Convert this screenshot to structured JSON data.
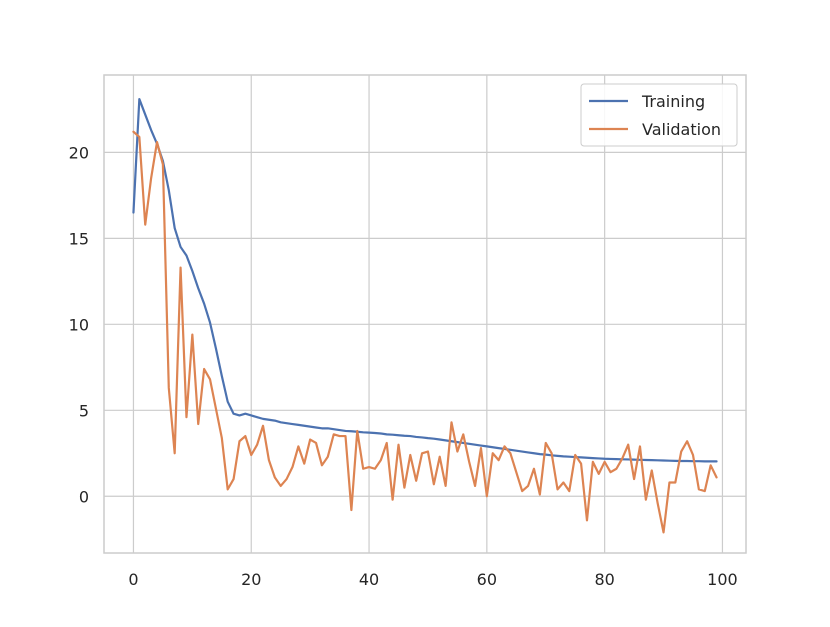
{
  "chart_data": {
    "type": "line",
    "title": "",
    "xlabel": "",
    "ylabel": "",
    "xlim": [
      -5,
      104
    ],
    "ylim": [
      -3.3,
      24.5
    ],
    "xticks": [
      0,
      20,
      40,
      60,
      80,
      100
    ],
    "yticks": [
      0,
      5,
      10,
      15,
      20
    ],
    "grid": true,
    "legend_position": "top-right",
    "series": [
      {
        "name": "Training",
        "color": "#4c72b0",
        "x": [
          0,
          1,
          2,
          3,
          4,
          5,
          6,
          7,
          8,
          9,
          10,
          11,
          12,
          13,
          14,
          15,
          16,
          17,
          18,
          19,
          20,
          21,
          22,
          23,
          24,
          25,
          26,
          27,
          28,
          29,
          30,
          31,
          32,
          33,
          34,
          35,
          36,
          37,
          38,
          39,
          40,
          41,
          42,
          43,
          44,
          45,
          46,
          47,
          48,
          49,
          50,
          51,
          52,
          53,
          54,
          55,
          56,
          57,
          58,
          59,
          60,
          61,
          62,
          63,
          64,
          65,
          66,
          67,
          68,
          69,
          70,
          71,
          72,
          73,
          74,
          75,
          76,
          77,
          78,
          79,
          80,
          81,
          82,
          83,
          84,
          85,
          86,
          87,
          88,
          89,
          90,
          91,
          92,
          93,
          94,
          95,
          96,
          97,
          98,
          99
        ],
        "values": [
          16.5,
          23.1,
          22.2,
          21.3,
          20.5,
          19.5,
          17.8,
          15.6,
          14.5,
          14.0,
          13.1,
          12.1,
          11.2,
          10.1,
          8.6,
          7.0,
          5.5,
          4.8,
          4.7,
          4.8,
          4.7,
          4.6,
          4.5,
          4.45,
          4.4,
          4.3,
          4.25,
          4.2,
          4.15,
          4.1,
          4.05,
          4.0,
          3.95,
          3.95,
          3.9,
          3.85,
          3.8,
          3.78,
          3.75,
          3.72,
          3.7,
          3.68,
          3.65,
          3.6,
          3.58,
          3.55,
          3.52,
          3.5,
          3.45,
          3.42,
          3.38,
          3.35,
          3.3,
          3.25,
          3.2,
          3.15,
          3.1,
          3.05,
          3.0,
          2.95,
          2.9,
          2.85,
          2.8,
          2.75,
          2.7,
          2.65,
          2.6,
          2.55,
          2.5,
          2.45,
          2.42,
          2.38,
          2.35,
          2.32,
          2.3,
          2.28,
          2.26,
          2.24,
          2.22,
          2.2,
          2.18,
          2.17,
          2.16,
          2.15,
          2.14,
          2.13,
          2.12,
          2.11,
          2.1,
          2.09,
          2.08,
          2.07,
          2.06,
          2.05,
          2.05,
          2.04,
          2.04,
          2.03,
          2.03,
          2.03
        ]
      },
      {
        "name": "Validation",
        "color": "#dd8452",
        "x": [
          0,
          1,
          2,
          3,
          4,
          5,
          6,
          7,
          8,
          9,
          10,
          11,
          12,
          13,
          14,
          15,
          16,
          17,
          18,
          19,
          20,
          21,
          22,
          23,
          24,
          25,
          26,
          27,
          28,
          29,
          30,
          31,
          32,
          33,
          34,
          35,
          36,
          37,
          38,
          39,
          40,
          41,
          42,
          43,
          44,
          45,
          46,
          47,
          48,
          49,
          50,
          51,
          52,
          53,
          54,
          55,
          56,
          57,
          58,
          59,
          60,
          61,
          62,
          63,
          64,
          65,
          66,
          67,
          68,
          69,
          70,
          71,
          72,
          73,
          74,
          75,
          76,
          77,
          78,
          79,
          80,
          81,
          82,
          83,
          84,
          85,
          86,
          87,
          88,
          89,
          90,
          91,
          92,
          93,
          94,
          95,
          96,
          97,
          98,
          99
        ],
        "values": [
          21.2,
          20.9,
          15.8,
          18.5,
          20.6,
          19.3,
          6.3,
          2.5,
          13.3,
          4.6,
          9.4,
          4.2,
          7.4,
          6.8,
          5.1,
          3.4,
          0.4,
          1.0,
          3.2,
          3.5,
          2.4,
          3.0,
          4.1,
          2.1,
          1.1,
          0.6,
          1.0,
          1.7,
          2.9,
          1.9,
          3.3,
          3.1,
          1.8,
          2.3,
          3.6,
          3.5,
          3.5,
          -0.8,
          3.8,
          1.6,
          1.7,
          1.6,
          2.1,
          3.1,
          -0.2,
          3.0,
          0.5,
          2.4,
          0.9,
          2.5,
          2.6,
          0.7,
          2.3,
          0.6,
          4.3,
          2.6,
          3.6,
          2.0,
          0.6,
          2.8,
          0.0,
          2.5,
          2.1,
          2.9,
          2.5,
          1.4,
          0.3,
          0.6,
          1.6,
          0.1,
          3.1,
          2.5,
          0.4,
          0.8,
          0.3,
          2.4,
          1.9,
          -1.4,
          2.0,
          1.3,
          2.0,
          1.4,
          1.6,
          2.2,
          3.0,
          1.0,
          2.9,
          -0.2,
          1.5,
          -0.4,
          -2.1,
          0.8,
          0.8,
          2.6,
          3.2,
          2.4,
          0.4,
          0.3,
          1.8,
          1.1
        ]
      }
    ]
  }
}
